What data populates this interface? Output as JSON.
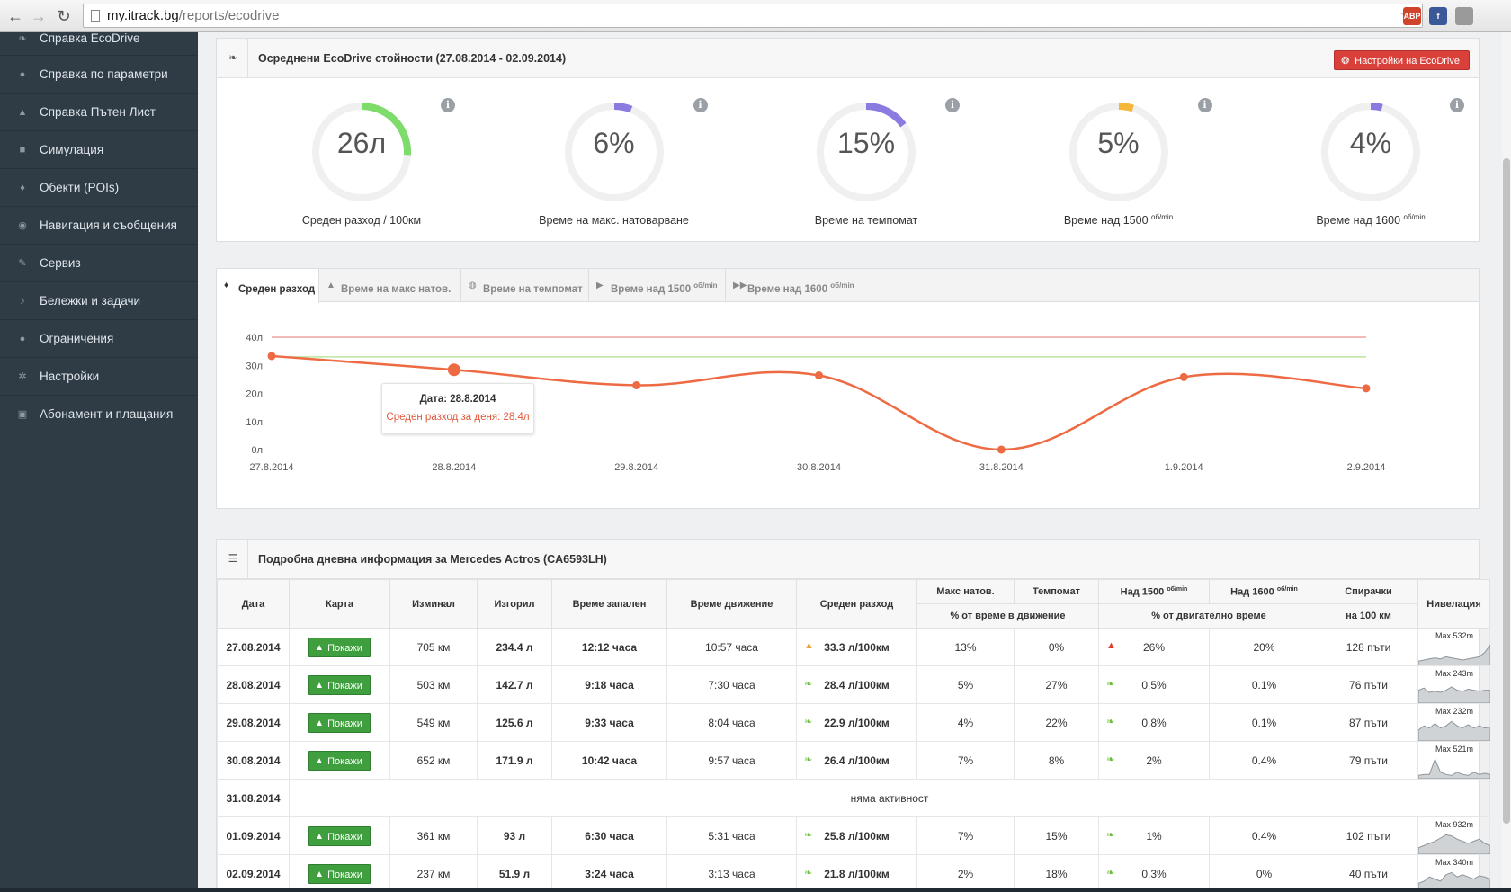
{
  "browser": {
    "url_host": "my.itrack.bg",
    "url_path": "/reports/ecodrive",
    "extensions": [
      {
        "name": "adblock-icon",
        "label": "ABP",
        "color": "#d0442c"
      },
      {
        "name": "facebook-icon",
        "label": "f",
        "color": "#3b5998"
      },
      {
        "name": "download-icon",
        "label": "",
        "color": "#9a9a9a"
      }
    ]
  },
  "sidebar": {
    "items": [
      {
        "label": "Справка EcoDrive",
        "icon": "leaf-icon",
        "glyph": "❧"
      },
      {
        "label": "Справка по параметри",
        "icon": "tags-icon",
        "glyph": "●"
      },
      {
        "label": "Справка Пътен Лист",
        "icon": "road-icon",
        "glyph": "▲"
      },
      {
        "label": "Симулация",
        "icon": "video-icon",
        "glyph": "■"
      },
      {
        "label": "Обекти (POIs)",
        "icon": "map-marker-icon",
        "glyph": "♦"
      },
      {
        "label": "Навигация и съобщения",
        "icon": "comments-icon",
        "glyph": "◉"
      },
      {
        "label": "Сервиз",
        "icon": "wrench-icon",
        "glyph": "✎"
      },
      {
        "label": "Бележки и задачи",
        "icon": "bell-icon",
        "glyph": "♪"
      },
      {
        "label": "Ограничения",
        "icon": "minus-circle-icon",
        "glyph": "●"
      },
      {
        "label": "Настройки",
        "icon": "cog-icon",
        "glyph": "✲"
      },
      {
        "label": "Абонамент и плащания",
        "icon": "money-icon",
        "glyph": "▣"
      }
    ]
  },
  "summary": {
    "title": "Осреднени EcoDrive стойности (27.08.2014 - 02.09.2014)",
    "settings_button": "Настройки на EcoDrive",
    "gauges": [
      {
        "value": "26л",
        "label": "Среден разход / 100км",
        "label_sup": "",
        "fill": 0.26,
        "color": "#7ddc6a"
      },
      {
        "value": "6%",
        "label": "Време на макс. натоварване",
        "label_sup": "",
        "fill": 0.06,
        "color": "#8a7be0"
      },
      {
        "value": "15%",
        "label": "Време на темпомат",
        "label_sup": "",
        "fill": 0.15,
        "color": "#8a7be0"
      },
      {
        "value": "5%",
        "label": "Време над 1500 ",
        "label_sup": "об/min",
        "fill": 0.05,
        "color": "#f5b63a"
      },
      {
        "value": "4%",
        "label": "Време над 1600 ",
        "label_sup": "об/min",
        "fill": 0.04,
        "color": "#8a7be0"
      }
    ]
  },
  "tabs": [
    {
      "label": "Среден разход",
      "sup": "",
      "glyph": "♦",
      "icon": "tint-icon",
      "active": true
    },
    {
      "label": "Време на макс натов.",
      "sup": "",
      "glyph": "▲",
      "icon": "warning-icon",
      "active": false
    },
    {
      "label": "Време на темпомат",
      "sup": "",
      "glyph": "◍",
      "icon": "dashboard-icon",
      "active": false
    },
    {
      "label": "Време над 1500 ",
      "sup": "об/min",
      "glyph": "▶",
      "icon": "play-icon",
      "active": false
    },
    {
      "label": "Време над 1600 ",
      "sup": "об/min",
      "glyph": "▶▶",
      "icon": "forward-icon",
      "active": false
    }
  ],
  "chart_data": {
    "type": "line",
    "x": [
      "27.8.2014",
      "28.8.2014",
      "29.8.2014",
      "30.8.2014",
      "31.8.2014",
      "1.9.2014",
      "2.9.2014"
    ],
    "series": [
      {
        "values": [
          33.3,
          28.4,
          22.9,
          26.4,
          0,
          25.8,
          21.8
        ],
        "color": "#ee6a43"
      }
    ],
    "reference_lines": [
      {
        "value": 40,
        "color": "#f1a4a4"
      },
      {
        "value": 33,
        "color": "#bfe3a0"
      }
    ],
    "y_ticks": [
      "0л",
      "10л",
      "20л",
      "30л",
      "40л"
    ],
    "ylim": [
      0,
      40
    ],
    "tooltip": {
      "title": "Дата: 28.8.2014",
      "text": "Среден разход за деня: 28.4л",
      "index": 1
    }
  },
  "detail": {
    "title": "Подробна дневна информация за Mercedes Actros (CA6593LH)",
    "headers": {
      "date": "Дата",
      "map": "Карта",
      "distance": "Изминал",
      "fuel": "Изгорил",
      "engine_time": "Време запален",
      "move_time": "Време движение",
      "avg": "Среден разход",
      "max_load": "Макс натов.",
      "cruise": "Темпомат",
      "over1500": "Над 1500 ",
      "over1600": "Над 1600 ",
      "rpm_sup": "об/min",
      "brakes": "Спирачки",
      "elevation": "Нивелация",
      "sub_move": "% от време в движение",
      "sub_engine": "% от двигателно време",
      "sub_brakes": "на 100 км"
    },
    "show_label": "Покажи",
    "no_activity": "няма активност",
    "rows": [
      {
        "date": "27.08.2014",
        "distance": "705 км",
        "fuel": "234.4 л",
        "engine_time": "12:12 часа",
        "move_time": "10:57 часа",
        "avg": "33.3 л/100км",
        "avg_icon": "arrow-up-icon",
        "max_load": "13%",
        "cruise": "0%",
        "rpm_icon": "arrow-up-icon",
        "over1500": "26%",
        "over1600": "20%",
        "brakes": "128 пъти",
        "elevation": "Max 532m",
        "profile": [
          0.2,
          0.25,
          0.3,
          0.35,
          0.3,
          0.4,
          0.35,
          0.3,
          0.25,
          0.3,
          0.35,
          0.4,
          0.6,
          0.95
        ]
      },
      {
        "date": "28.08.2014",
        "distance": "503 км",
        "fuel": "142.7 л",
        "engine_time": "9:18 часа",
        "move_time": "7:30 часа",
        "avg": "28.4 л/100км",
        "avg_icon": "leaf-icon",
        "max_load": "5%",
        "cruise": "27%",
        "rpm_icon": "leaf-icon",
        "over1500": "0.5%",
        "over1600": "0.1%",
        "brakes": "76 пъти",
        "elevation": "Max 243m",
        "profile": [
          0.6,
          0.7,
          0.5,
          0.55,
          0.5,
          0.6,
          0.75,
          0.6,
          0.55,
          0.65,
          0.6,
          0.55,
          0.6,
          0.6
        ]
      },
      {
        "date": "29.08.2014",
        "distance": "549 км",
        "fuel": "125.6 л",
        "engine_time": "9:33 часа",
        "move_time": "8:04 часа",
        "avg": "22.9 л/100км",
        "avg_icon": "leaf-icon",
        "max_load": "4%",
        "cruise": "22%",
        "rpm_icon": "leaf-icon",
        "over1500": "0.8%",
        "over1600": "0.1%",
        "brakes": "87 пъти",
        "elevation": "Max 232m",
        "profile": [
          0.5,
          0.7,
          0.6,
          0.8,
          0.6,
          0.7,
          0.9,
          0.7,
          0.6,
          0.75,
          0.6,
          0.7,
          0.6,
          0.65
        ]
      },
      {
        "date": "30.08.2014",
        "distance": "652 км",
        "fuel": "171.9 л",
        "engine_time": "10:42 часа",
        "move_time": "9:57 часа",
        "avg": "26.4 л/100км",
        "avg_icon": "leaf-icon",
        "max_load": "7%",
        "cruise": "8%",
        "rpm_icon": "leaf-icon",
        "over1500": "2%",
        "over1600": "0.4%",
        "brakes": "79 пъти",
        "elevation": "Max 521m",
        "profile": [
          0.15,
          0.2,
          0.2,
          0.9,
          0.3,
          0.2,
          0.15,
          0.3,
          0.2,
          0.15,
          0.3,
          0.2,
          0.25,
          0.2
        ]
      },
      {
        "date": "31.08.2014",
        "no_activity": true
      },
      {
        "date": "01.09.2014",
        "distance": "361 км",
        "fuel": "93 л",
        "engine_time": "6:30 часа",
        "move_time": "5:31 часа",
        "avg": "25.8 л/100км",
        "avg_icon": "leaf-icon",
        "max_load": "7%",
        "cruise": "15%",
        "rpm_icon": "leaf-icon",
        "over1500": "1%",
        "over1600": "0.4%",
        "brakes": "102 пъти",
        "elevation": "Max 932m",
        "profile": [
          0.3,
          0.4,
          0.5,
          0.6,
          0.75,
          0.9,
          0.85,
          0.7,
          0.6,
          0.5,
          0.6,
          0.7,
          0.5,
          0.4
        ]
      },
      {
        "date": "02.09.2014",
        "distance": "237 км",
        "fuel": "51.9 л",
        "engine_time": "3:24 часа",
        "move_time": "3:13 часа",
        "avg": "21.8 л/100км",
        "avg_icon": "leaf-icon",
        "max_load": "2%",
        "cruise": "18%",
        "rpm_icon": "leaf-icon",
        "over1500": "0.3%",
        "over1600": "0%",
        "brakes": "40 пъти",
        "elevation": "Max 340m",
        "profile": [
          0.4,
          0.5,
          0.7,
          0.6,
          0.5,
          0.8,
          0.9,
          0.7,
          0.8,
          0.7,
          0.6,
          0.75,
          0.7,
          0.6
        ]
      }
    ]
  }
}
